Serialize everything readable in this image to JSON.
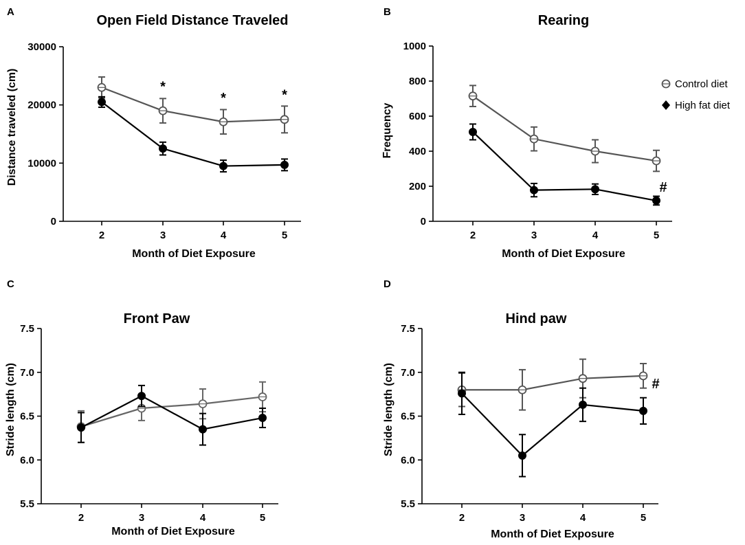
{
  "legend": {
    "items": [
      {
        "label": "Control diet",
        "marker": "open-circle"
      },
      {
        "label": "High fat diet",
        "marker": "filled-diamond"
      }
    ]
  },
  "colors": {
    "control": "#555555",
    "high_fat": "#000000",
    "front_paw_control": "#666666"
  },
  "chart_data": [
    {
      "panel": "A",
      "type": "line",
      "title": "Open Field Distance Traveled",
      "xlabel": "Month of Diet Exposure",
      "ylabel": "Distance traveled (cm)",
      "categories": [
        "2",
        "3",
        "4",
        "5"
      ],
      "ylim": [
        0,
        30000
      ],
      "yticks": [
        0,
        10000,
        20000,
        30000
      ],
      "ytick_labels": [
        "0",
        "10000",
        "20000",
        "30000"
      ],
      "series": [
        {
          "name": "Control diet",
          "values": [
            23000,
            19000,
            17100,
            17500
          ],
          "errors": [
            1800,
            2100,
            2100,
            2300
          ]
        },
        {
          "name": "High fat diet",
          "values": [
            20500,
            12500,
            9500,
            9700
          ],
          "errors": [
            900,
            1100,
            1000,
            1000
          ]
        }
      ],
      "annotations": [
        {
          "category": "3",
          "text": "*",
          "value": 23300
        },
        {
          "category": "4",
          "text": "*",
          "value": 21400
        },
        {
          "category": "5",
          "text": "*",
          "value": 21900
        }
      ]
    },
    {
      "panel": "B",
      "type": "line",
      "title": "Rearing",
      "xlabel": "Month of Diet Exposure",
      "ylabel": "Frequency",
      "categories": [
        "2",
        "3",
        "4",
        "5"
      ],
      "ylim": [
        0,
        1000
      ],
      "yticks": [
        0,
        200,
        400,
        600,
        800,
        1000
      ],
      "ytick_labels": [
        "0",
        "200",
        "400",
        "600",
        "800",
        "1000"
      ],
      "series": [
        {
          "name": "Control diet",
          "values": [
            715,
            470,
            400,
            345
          ],
          "errors": [
            60,
            68,
            65,
            60
          ]
        },
        {
          "name": "High fat diet",
          "values": [
            510,
            178,
            183,
            118
          ],
          "errors": [
            45,
            38,
            30,
            25
          ]
        }
      ],
      "annotations": [
        {
          "category": "5",
          "text": "#",
          "value": 200
        }
      ],
      "legend": "right"
    },
    {
      "panel": "C",
      "type": "line",
      "title": "Front Paw",
      "xlabel": "Month of Diet Exposure",
      "ylabel": "Stride length (cm)",
      "categories": [
        "2",
        "3",
        "4",
        "5"
      ],
      "ylim": [
        5.5,
        7.5
      ],
      "yticks": [
        5.5,
        6.0,
        6.5,
        7.0,
        7.5
      ],
      "ytick_labels": [
        "5.5",
        "6.0",
        "6.5",
        "7.0",
        "7.5"
      ],
      "series": [
        {
          "name": "Control diet",
          "values": [
            6.38,
            6.59,
            6.64,
            6.72
          ],
          "errors": [
            0.18,
            0.14,
            0.17,
            0.17
          ]
        },
        {
          "name": "High fat diet",
          "values": [
            6.37,
            6.73,
            6.35,
            6.48
          ],
          "errors": [
            0.17,
            0.12,
            0.18,
            0.11
          ]
        }
      ],
      "annotations": []
    },
    {
      "panel": "D",
      "type": "line",
      "title": "Hind paw",
      "xlabel": "Month of Diet Exposure",
      "ylabel": "Stride length (cm)",
      "categories": [
        "2",
        "3",
        "4",
        "5"
      ],
      "ylim": [
        5.5,
        7.5
      ],
      "yticks": [
        5.5,
        6.0,
        6.5,
        7.0,
        7.5
      ],
      "ytick_labels": [
        "5.5",
        "6.0",
        "6.5",
        "7.0",
        "7.5"
      ],
      "series": [
        {
          "name": "Control diet",
          "values": [
            6.8,
            6.8,
            6.93,
            6.96
          ],
          "errors": [
            0.19,
            0.23,
            0.22,
            0.14
          ]
        },
        {
          "name": "High fat diet",
          "values": [
            6.76,
            6.05,
            6.63,
            6.56
          ],
          "errors": [
            0.24,
            0.24,
            0.19,
            0.15
          ]
        }
      ],
      "annotations": [
        {
          "category": "5",
          "text": "#",
          "value": 6.88
        }
      ]
    }
  ]
}
